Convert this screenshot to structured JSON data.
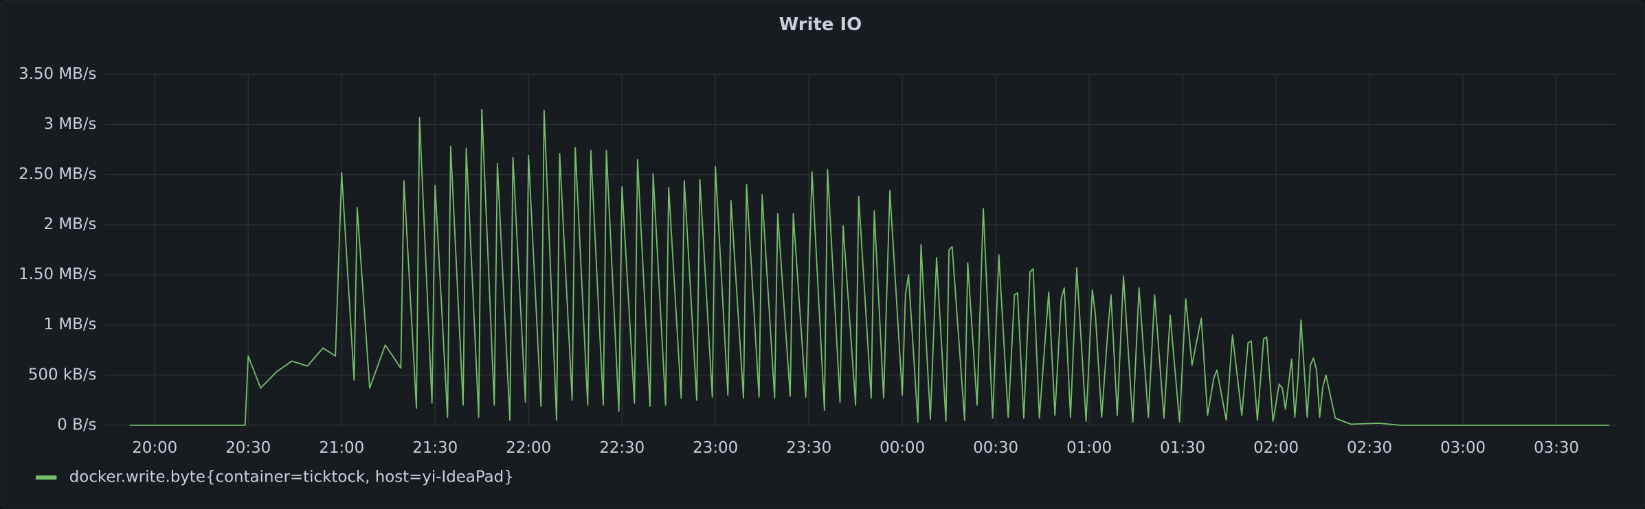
{
  "chart_data": {
    "type": "line",
    "title": "Write IO",
    "x": [
      "19:52",
      "20:29",
      "20:30",
      "20:34",
      "20:39",
      "20:44",
      "20:49",
      "20:54",
      "20:58",
      "21:00",
      "21:04",
      "21:05",
      "21:09",
      "21:14",
      "21:19",
      "21:20",
      "21:24",
      "21:25",
      "21:29",
      "21:30",
      "21:34",
      "21:35",
      "21:39",
      "21:40",
      "21:44",
      "21:45",
      "21:49",
      "21:50",
      "21:54",
      "21:55",
      "21:59",
      "22:00",
      "22:04",
      "22:05",
      "22:09",
      "22:10",
      "22:14",
      "22:15",
      "22:19",
      "22:20",
      "22:24",
      "22:25",
      "22:29",
      "22:30",
      "22:34",
      "22:35",
      "22:39",
      "22:40",
      "22:44",
      "22:45",
      "22:49",
      "22:50",
      "22:54",
      "22:55",
      "22:59",
      "23:00",
      "23:04",
      "23:05",
      "23:09",
      "23:10",
      "23:14",
      "23:15",
      "23:19",
      "23:20",
      "23:24",
      "23:25",
      "23:29",
      "23:31",
      "23:35",
      "23:36",
      "23:40",
      "23:41",
      "23:45",
      "23:46",
      "23:50",
      "23:51",
      "23:54",
      "23:56",
      "00:00",
      "00:01",
      "00:02",
      "00:05",
      "00:06",
      "00:09",
      "00:11",
      "00:14",
      "00:15",
      "00:16",
      "00:20",
      "00:21",
      "00:24",
      "00:26",
      "00:29",
      "00:31",
      "00:34",
      "00:36",
      "00:37",
      "00:39",
      "00:41",
      "00:42",
      "00:44",
      "00:47",
      "00:49",
      "00:51",
      "00:52",
      "00:54",
      "00:56",
      "00:59",
      "01:01",
      "01:02",
      "01:04",
      "01:06",
      "01:07",
      "01:09",
      "01:11",
      "01:14",
      "01:16",
      "01:19",
      "01:21",
      "01:24",
      "01:26",
      "01:29",
      "01:31",
      "01:33",
      "01:36",
      "01:38",
      "01:40",
      "01:41",
      "01:44",
      "01:46",
      "01:49",
      "01:51",
      "01:52",
      "01:54",
      "01:56",
      "01:57",
      "01:59",
      "02:01",
      "02:02",
      "02:03",
      "02:05",
      "02:06",
      "02:07",
      "02:08",
      "02:10",
      "02:11",
      "02:12",
      "02:13",
      "02:14",
      "02:15",
      "02:16",
      "02:19",
      "02:24",
      "02:33",
      "02:40",
      "03:47"
    ],
    "series": [
      {
        "name": "docker.write.byte{container=ticktock, host=yi-IdeaPad}",
        "color": "#73bf69",
        "values": [
          0,
          0,
          0.69,
          0.37,
          0.53,
          0.64,
          0.59,
          0.77,
          0.69,
          2.52,
          0.45,
          2.17,
          0.37,
          0.8,
          0.57,
          2.44,
          0.17,
          3.07,
          0.22,
          2.39,
          0.08,
          2.78,
          0.2,
          2.76,
          0.08,
          3.15,
          0.2,
          2.61,
          0.05,
          2.67,
          0.23,
          2.69,
          0.19,
          3.14,
          0.05,
          2.71,
          0.25,
          2.77,
          0.2,
          2.74,
          0.2,
          2.74,
          0.14,
          2.38,
          0.22,
          2.65,
          0.19,
          2.51,
          0.2,
          2.37,
          0.27,
          2.44,
          0.25,
          2.45,
          0.28,
          2.58,
          0.3,
          2.24,
          0.27,
          2.4,
          0.28,
          2.3,
          0.27,
          2.11,
          0.29,
          2.11,
          0.28,
          2.53,
          0.15,
          2.55,
          0.23,
          1.99,
          0.2,
          2.28,
          0.27,
          2.14,
          0.27,
          2.34,
          0.3,
          1.3,
          1.5,
          0.03,
          1.8,
          0.06,
          1.67,
          0.04,
          1.75,
          1.78,
          0.05,
          1.62,
          0.2,
          2.16,
          0.07,
          1.7,
          0.08,
          1.3,
          1.32,
          0.07,
          1.53,
          1.56,
          0.07,
          1.33,
          0.1,
          1.26,
          1.37,
          0.08,
          1.57,
          0.04,
          1.35,
          1.1,
          0.08,
          0.95,
          1.3,
          0.1,
          1.49,
          0.03,
          1.37,
          0.08,
          1.3,
          0.07,
          1.1,
          0.03,
          1.26,
          0.6,
          1.07,
          0.1,
          0.47,
          0.55,
          0.05,
          0.9,
          0.1,
          0.82,
          0.84,
          0.05,
          0.86,
          0.88,
          0.04,
          0.41,
          0.37,
          0.16,
          0.66,
          0.08,
          0.45,
          1.05,
          0.08,
          0.6,
          0.67,
          0.55,
          0.08,
          0.38,
          0.5,
          0.07,
          0.01,
          0.02,
          0,
          0
        ]
      }
    ],
    "xlim": [
      "19:44",
      "03:49"
    ],
    "xticks": [
      "20:00",
      "20:30",
      "21:00",
      "21:30",
      "22:00",
      "22:30",
      "23:00",
      "23:30",
      "00:00",
      "00:30",
      "01:00",
      "01:30",
      "02:00",
      "02:30",
      "03:00",
      "03:30"
    ],
    "ylim": [
      0,
      3.5
    ],
    "yticks": [
      {
        "value": 0,
        "label": "0 B/s"
      },
      {
        "value": 0.5,
        "label": "500 kB/s"
      },
      {
        "value": 1,
        "label": "1 MB/s"
      },
      {
        "value": 1.5,
        "label": "1.50 MB/s"
      },
      {
        "value": 2,
        "label": "2 MB/s"
      },
      {
        "value": 2.5,
        "label": "2.50 MB/s"
      },
      {
        "value": 3,
        "label": "3 MB/s"
      },
      {
        "value": 3.5,
        "label": "3.50 MB/s"
      }
    ],
    "grid": true,
    "legend": "bottom-left"
  }
}
